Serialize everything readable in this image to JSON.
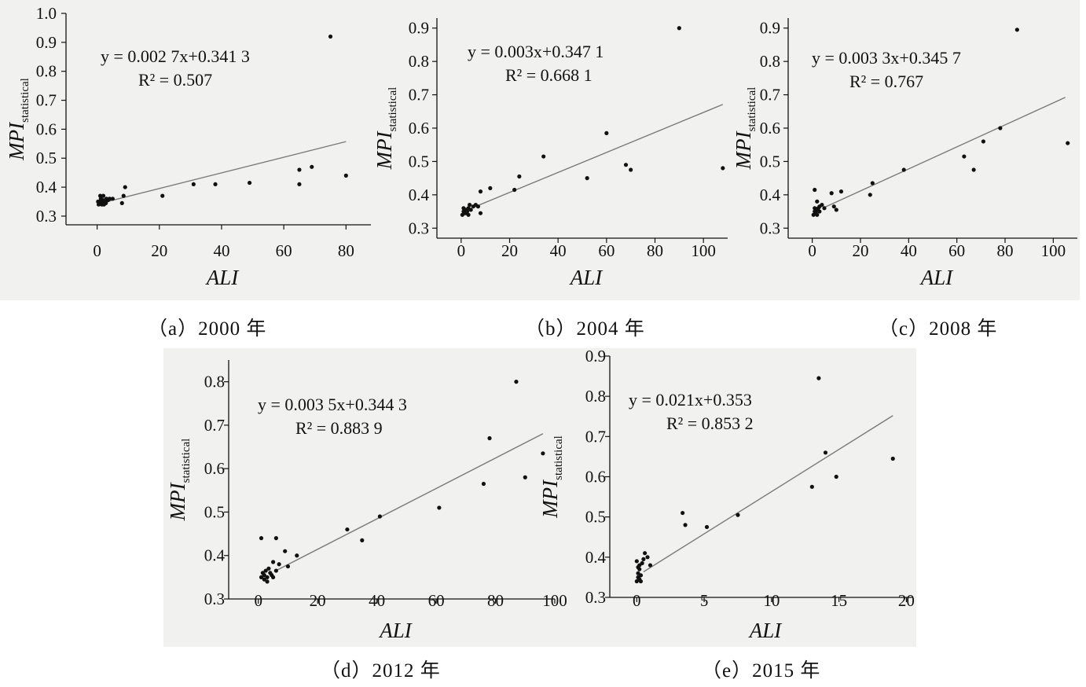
{
  "chart_data": [
    {
      "type": "scatter",
      "caption": "（a）2000 年",
      "xlabel": "ALI",
      "ylabel": {
        "main": "MPI",
        "sub": "statistical"
      },
      "xticks": [
        0,
        20,
        40,
        60,
        80
      ],
      "yticks": [
        "0.3",
        "0.4",
        "0.5",
        "0.6",
        "0.7",
        "0.8",
        "0.9",
        "1.0"
      ],
      "xlim": [
        -10,
        88
      ],
      "ylim": [
        0.27,
        1.0
      ],
      "equation": {
        "line1": "y = 0.002 7x+0.341 3",
        "line2": "R² = 0.507"
      },
      "fit": {
        "slope": 0.0027,
        "intercept": 0.3413,
        "x_range": [
          0,
          80
        ]
      },
      "points": [
        [
          0.5,
          0.34
        ],
        [
          0.8,
          0.35
        ],
        [
          1,
          0.345
        ],
        [
          1.2,
          0.36
        ],
        [
          1.5,
          0.34
        ],
        [
          1.8,
          0.35
        ],
        [
          2,
          0.355
        ],
        [
          2.2,
          0.34
        ],
        [
          2.5,
          0.35
        ],
        [
          2.8,
          0.345
        ],
        [
          3,
          0.36
        ],
        [
          1,
          0.37
        ],
        [
          2,
          0.37
        ],
        [
          0.3,
          0.35
        ],
        [
          3.5,
          0.355
        ],
        [
          4,
          0.36
        ],
        [
          5,
          0.36
        ],
        [
          8,
          0.345
        ],
        [
          8.5,
          0.37
        ],
        [
          9,
          0.4
        ],
        [
          21,
          0.37
        ],
        [
          31,
          0.41
        ],
        [
          38,
          0.41
        ],
        [
          49,
          0.415
        ],
        [
          65,
          0.41
        ],
        [
          65,
          0.46
        ],
        [
          69,
          0.47
        ],
        [
          75,
          0.92
        ],
        [
          80,
          0.44
        ]
      ]
    },
    {
      "type": "scatter",
      "caption": "（b）2004 年",
      "xlabel": "ALI",
      "ylabel": {
        "main": "MPI",
        "sub": "statistical"
      },
      "xticks": [
        0,
        20,
        40,
        60,
        80,
        100
      ],
      "yticks": [
        "0.3",
        "0.4",
        "0.5",
        "0.6",
        "0.7",
        "0.8",
        "0.9"
      ],
      "xlim": [
        -10,
        110
      ],
      "ylim": [
        0.27,
        0.93
      ],
      "equation": {
        "line1": "y = 0.003x+0.347 1",
        "line2": "R² = 0.668 1"
      },
      "fit": {
        "slope": 0.003,
        "intercept": 0.3471,
        "x_range": [
          5,
          108
        ]
      },
      "points": [
        [
          0.5,
          0.34
        ],
        [
          1,
          0.35
        ],
        [
          1.5,
          0.345
        ],
        [
          2,
          0.355
        ],
        [
          2.5,
          0.35
        ],
        [
          3,
          0.36
        ],
        [
          3.5,
          0.37
        ],
        [
          4,
          0.355
        ],
        [
          1,
          0.36
        ],
        [
          2,
          0.345
        ],
        [
          3,
          0.34
        ],
        [
          5,
          0.365
        ],
        [
          6,
          0.37
        ],
        [
          7,
          0.365
        ],
        [
          8,
          0.345
        ],
        [
          8,
          0.41
        ],
        [
          12,
          0.42
        ],
        [
          22,
          0.415
        ],
        [
          24,
          0.455
        ],
        [
          34,
          0.515
        ],
        [
          52,
          0.45
        ],
        [
          60,
          0.585
        ],
        [
          68,
          0.49
        ],
        [
          70,
          0.475
        ],
        [
          90,
          0.9
        ],
        [
          108,
          0.48
        ]
      ]
    },
    {
      "type": "scatter",
      "caption": "（c）2008 年",
      "xlabel": "ALI",
      "ylabel": {
        "main": "MPI",
        "sub": "statistical"
      },
      "xticks": [
        0,
        20,
        40,
        60,
        80,
        100
      ],
      "yticks": [
        "0.3",
        "0.4",
        "0.5",
        "0.6",
        "0.7",
        "0.8",
        "0.9"
      ],
      "xlim": [
        -10,
        110
      ],
      "ylim": [
        0.27,
        0.93
      ],
      "equation": {
        "line1": "y = 0.003 3x+0.345 7",
        "line2": "R² = 0.767"
      },
      "fit": {
        "slope": 0.0033,
        "intercept": 0.3457,
        "x_range": [
          5,
          105
        ]
      },
      "points": [
        [
          0.5,
          0.34
        ],
        [
          1,
          0.35
        ],
        [
          1.5,
          0.345
        ],
        [
          2,
          0.355
        ],
        [
          2.5,
          0.36
        ],
        [
          3,
          0.35
        ],
        [
          1,
          0.36
        ],
        [
          2,
          0.34
        ],
        [
          3,
          0.365
        ],
        [
          1,
          0.415
        ],
        [
          2,
          0.38
        ],
        [
          4,
          0.37
        ],
        [
          5,
          0.36
        ],
        [
          8,
          0.405
        ],
        [
          9,
          0.365
        ],
        [
          10,
          0.355
        ],
        [
          12,
          0.41
        ],
        [
          24,
          0.4
        ],
        [
          25,
          0.435
        ],
        [
          38,
          0.475
        ],
        [
          63,
          0.515
        ],
        [
          67,
          0.475
        ],
        [
          71,
          0.56
        ],
        [
          78,
          0.6
        ],
        [
          85,
          0.895
        ],
        [
          106,
          0.555
        ]
      ]
    },
    {
      "type": "scatter",
      "caption": "（d）2012 年",
      "xlabel": "ALI",
      "ylabel": {
        "main": "MPI",
        "sub": "statistical"
      },
      "xticks": [
        0,
        20,
        40,
        60,
        80,
        100
      ],
      "yticks": [
        "0.3",
        "0.4",
        "0.5",
        "0.6",
        "0.7",
        "0.8"
      ],
      "xlim": [
        -10,
        100
      ],
      "ylim": [
        0.3,
        0.85
      ],
      "equation": {
        "line1": "y = 0.003 5x+0.344 3",
        "line2": "R² = 0.883 9"
      },
      "fit": {
        "slope": 0.0035,
        "intercept": 0.3443,
        "x_range": [
          6,
          96
        ]
      },
      "points": [
        [
          1,
          0.35
        ],
        [
          1.5,
          0.36
        ],
        [
          2,
          0.355
        ],
        [
          2.5,
          0.365
        ],
        [
          3,
          0.35
        ],
        [
          3.5,
          0.37
        ],
        [
          4,
          0.36
        ],
        [
          4.5,
          0.355
        ],
        [
          5,
          0.35
        ],
        [
          2,
          0.345
        ],
        [
          3,
          0.34
        ],
        [
          1,
          0.44
        ],
        [
          6,
          0.44
        ],
        [
          5,
          0.385
        ],
        [
          6,
          0.365
        ],
        [
          7,
          0.38
        ],
        [
          9,
          0.41
        ],
        [
          10,
          0.375
        ],
        [
          13,
          0.4
        ],
        [
          30,
          0.46
        ],
        [
          35,
          0.435
        ],
        [
          41,
          0.49
        ],
        [
          61,
          0.51
        ],
        [
          76,
          0.565
        ],
        [
          78,
          0.67
        ],
        [
          87,
          0.8
        ],
        [
          90,
          0.58
        ],
        [
          96,
          0.635
        ]
      ]
    },
    {
      "type": "scatter",
      "caption": "（e）2015 年",
      "xlabel": "ALI",
      "ylabel": {
        "main": "MPI",
        "sub": "statistical"
      },
      "xticks": [
        0,
        5,
        10,
        15,
        20
      ],
      "yticks": [
        "0.3",
        "0.4",
        "0.5",
        "0.6",
        "0.7",
        "0.8",
        "0.9"
      ],
      "xlim": [
        -2,
        20.5
      ],
      "ylim": [
        0.3,
        0.9
      ],
      "equation": {
        "line1": "y = 0.021x+0.353",
        "line2": "R² = 0.853 2"
      },
      "fit": {
        "slope": 0.021,
        "intercept": 0.353,
        "x_range": [
          0.5,
          19
        ]
      },
      "points": [
        [
          0,
          0.34
        ],
        [
          0.1,
          0.35
        ],
        [
          0.2,
          0.345
        ],
        [
          0.1,
          0.36
        ],
        [
          0.2,
          0.37
        ],
        [
          0.3,
          0.355
        ],
        [
          0.1,
          0.375
        ],
        [
          0.2,
          0.38
        ],
        [
          0.3,
          0.34
        ],
        [
          0,
          0.39
        ],
        [
          0.4,
          0.385
        ],
        [
          0.5,
          0.395
        ],
        [
          0.6,
          0.41
        ],
        [
          0.8,
          0.4
        ],
        [
          1,
          0.38
        ],
        [
          3.4,
          0.51
        ],
        [
          3.6,
          0.48
        ],
        [
          5.2,
          0.475
        ],
        [
          7.5,
          0.505
        ],
        [
          13,
          0.575
        ],
        [
          13.5,
          0.845
        ],
        [
          14,
          0.66
        ],
        [
          14.8,
          0.6
        ],
        [
          19,
          0.645
        ]
      ]
    }
  ]
}
